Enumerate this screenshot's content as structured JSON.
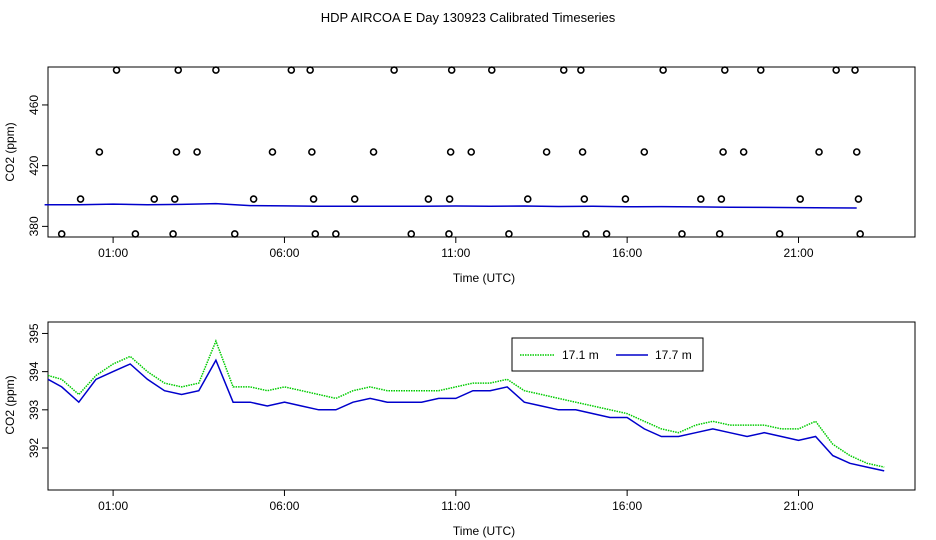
{
  "page_title": "HDP AIRCOA E  Day 130923  Calibrated Timeseries",
  "chart_data": [
    {
      "type": "scatter",
      "title": "",
      "xlabel": "Time (UTC)",
      "ylabel": "CO2 (ppm)",
      "x_unit": "hours UTC",
      "x_ticks": [
        1,
        6,
        11,
        16,
        21
      ],
      "x_tick_labels": [
        "01:00",
        "06:00",
        "11:00",
        "16:00",
        "21:00"
      ],
      "xlim": [
        -0.9,
        24.4
      ],
      "y_ticks": [
        380,
        420,
        460
      ],
      "y_tick_labels": [
        "380",
        "420",
        "460"
      ],
      "ylim": [
        373,
        485
      ],
      "grid": false,
      "series": [
        {
          "marker": "open-circle",
          "color": "#000000",
          "points": [
            [
              -0.5,
              375
            ],
            [
              0.05,
              398
            ],
            [
              0.6,
              429
            ],
            [
              1.1,
              483
            ],
            [
              1.65,
              375
            ],
            [
              2.2,
              398
            ],
            [
              2.75,
              375
            ],
            [
              2.8,
              398
            ],
            [
              2.85,
              429
            ],
            [
              2.9,
              483
            ],
            [
              3.45,
              429
            ],
            [
              4.0,
              483
            ],
            [
              4.55,
              375
            ],
            [
              5.1,
              398
            ],
            [
              5.65,
              429
            ],
            [
              6.2,
              483
            ],
            [
              6.75,
              483
            ],
            [
              6.8,
              429
            ],
            [
              6.85,
              398
            ],
            [
              6.9,
              375
            ],
            [
              7.5,
              375
            ],
            [
              8.05,
              398
            ],
            [
              8.6,
              429
            ],
            [
              9.2,
              483
            ],
            [
              9.7,
              375
            ],
            [
              10.2,
              398
            ],
            [
              10.8,
              375
            ],
            [
              10.82,
              398
            ],
            [
              10.85,
              429
            ],
            [
              10.88,
              483
            ],
            [
              11.45,
              429
            ],
            [
              12.05,
              483
            ],
            [
              12.55,
              375
            ],
            [
              13.1,
              398
            ],
            [
              13.65,
              429
            ],
            [
              14.15,
              483
            ],
            [
              14.65,
              483
            ],
            [
              14.7,
              429
            ],
            [
              14.75,
              398
            ],
            [
              14.8,
              375
            ],
            [
              15.4,
              375
            ],
            [
              15.95,
              398
            ],
            [
              16.5,
              429
            ],
            [
              17.05,
              483
            ],
            [
              17.6,
              375
            ],
            [
              18.15,
              398
            ],
            [
              18.7,
              375
            ],
            [
              18.75,
              398
            ],
            [
              18.8,
              429
            ],
            [
              18.85,
              483
            ],
            [
              19.4,
              429
            ],
            [
              19.9,
              483
            ],
            [
              20.45,
              375
            ],
            [
              21.05,
              398
            ],
            [
              21.6,
              429
            ],
            [
              22.1,
              483
            ],
            [
              22.65,
              483
            ],
            [
              22.7,
              429
            ],
            [
              22.75,
              398
            ],
            [
              22.8,
              375
            ]
          ]
        },
        {
          "marker": "line",
          "color": "#0000cc",
          "points": [
            [
              -1.0,
              394.3
            ],
            [
              0,
              394.2
            ],
            [
              1,
              394.7
            ],
            [
              2,
              394.2
            ],
            [
              3,
              394.5
            ],
            [
              4,
              395.0
            ],
            [
              5,
              393.7
            ],
            [
              6,
              393.5
            ],
            [
              7,
              393.2
            ],
            [
              8,
              393.3
            ],
            [
              9,
              393.2
            ],
            [
              10,
              393.3
            ],
            [
              11,
              393.4
            ],
            [
              12,
              393.2
            ],
            [
              13,
              393.4
            ],
            [
              14,
              393.1
            ],
            [
              15,
              393.2
            ],
            [
              16,
              392.9
            ],
            [
              17,
              393.0
            ],
            [
              18,
              392.8
            ],
            [
              19,
              392.6
            ],
            [
              20,
              392.5
            ],
            [
              21,
              392.4
            ],
            [
              22,
              392.2
            ],
            [
              22.7,
              392.1
            ]
          ]
        }
      ]
    },
    {
      "type": "line",
      "title": "",
      "xlabel": "Time (UTC)",
      "ylabel": "CO2 (ppm)",
      "x_unit": "hours UTC",
      "x_ticks": [
        1,
        6,
        11,
        16,
        21
      ],
      "x_tick_labels": [
        "01:00",
        "06:00",
        "11:00",
        "16:00",
        "21:00"
      ],
      "xlim": [
        -0.9,
        24.4
      ],
      "y_ticks": [
        392,
        393,
        394,
        395
      ],
      "y_tick_labels": [
        "392",
        "393",
        "394",
        "395"
      ],
      "ylim": [
        390.9,
        395.3
      ],
      "grid": false,
      "legend_position": "top-right",
      "series": [
        {
          "name": "17.1 m",
          "color": "#00cc00",
          "x": [
            -0.9,
            -0.5,
            0,
            0.5,
            1,
            1.5,
            2,
            2.5,
            3,
            3.5,
            4,
            4.5,
            5,
            5.5,
            6,
            6.5,
            7,
            7.5,
            8,
            8.5,
            9,
            9.5,
            10,
            10.5,
            11,
            11.5,
            12,
            12.5,
            13,
            13.5,
            14,
            14.5,
            15,
            15.5,
            16,
            16.5,
            17,
            17.5,
            18,
            18.5,
            19,
            19.5,
            20,
            20.5,
            21,
            21.5,
            22,
            22.5,
            23,
            23.5
          ],
          "y": [
            393.9,
            393.8,
            393.4,
            393.9,
            394.2,
            394.4,
            394.0,
            393.7,
            393.6,
            393.7,
            394.8,
            393.6,
            393.6,
            393.5,
            393.6,
            393.5,
            393.4,
            393.3,
            393.5,
            393.6,
            393.5,
            393.5,
            393.5,
            393.5,
            393.6,
            393.7,
            393.7,
            393.8,
            393.5,
            393.4,
            393.3,
            393.2,
            393.1,
            393.0,
            392.9,
            392.7,
            392.5,
            392.4,
            392.6,
            392.7,
            392.6,
            392.6,
            392.6,
            392.5,
            392.5,
            392.7,
            392.1,
            391.8,
            391.6,
            391.5
          ]
        },
        {
          "name": "17.7 m",
          "color": "#0000cc",
          "x": [
            -0.9,
            -0.5,
            0,
            0.5,
            1,
            1.5,
            2,
            2.5,
            3,
            3.5,
            4,
            4.5,
            5,
            5.5,
            6,
            6.5,
            7,
            7.5,
            8,
            8.5,
            9,
            9.5,
            10,
            10.5,
            11,
            11.5,
            12,
            12.5,
            13,
            13.5,
            14,
            14.5,
            15,
            15.5,
            16,
            16.5,
            17,
            17.5,
            18,
            18.5,
            19,
            19.5,
            20,
            20.5,
            21,
            21.5,
            22,
            22.5,
            23,
            23.5
          ],
          "y": [
            393.8,
            393.6,
            393.2,
            393.8,
            394.0,
            394.2,
            393.8,
            393.5,
            393.4,
            393.5,
            394.3,
            393.2,
            393.2,
            393.1,
            393.2,
            393.1,
            393.0,
            393.0,
            393.2,
            393.3,
            393.2,
            393.2,
            393.2,
            393.3,
            393.3,
            393.5,
            393.5,
            393.6,
            393.2,
            393.1,
            393.0,
            393.0,
            392.9,
            392.8,
            392.8,
            392.5,
            392.3,
            392.3,
            392.4,
            392.5,
            392.4,
            392.3,
            392.4,
            392.3,
            392.2,
            392.3,
            391.8,
            391.6,
            391.5,
            391.4
          ]
        }
      ]
    }
  ]
}
